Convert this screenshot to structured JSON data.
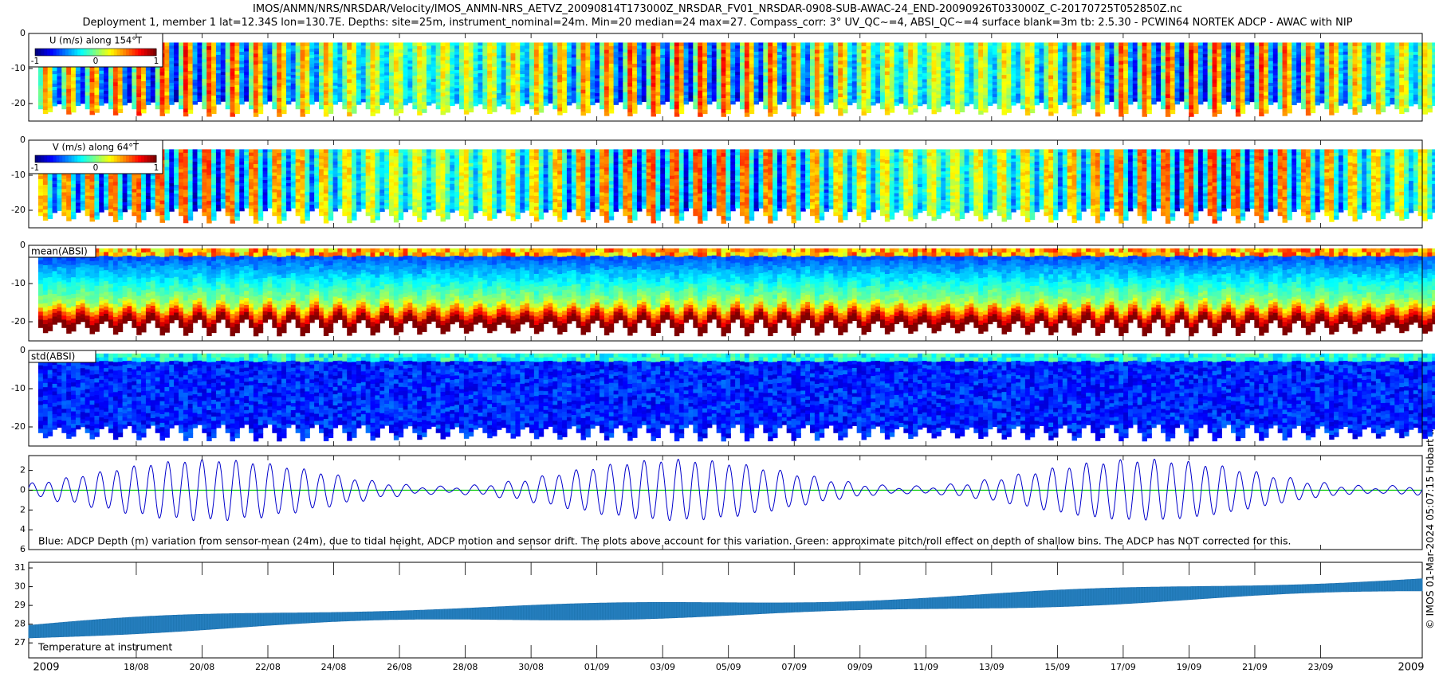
{
  "figure": {
    "title_line1": "IMOS/ANMN/NRS/NRSDAR/Velocity/IMOS_ANMN-NRS_AETVZ_20090814T173000Z_NRSDAR_FV01_NRSDAR-0908-SUB-AWAC-24_END-20090926T033000Z_C-20170725T052850Z.nc",
    "title_line2": "Deployment 1, member 1 lat=12.34S lon=130.7E. Depths: site=25m, instrument_nominal=24m. Min=20 median=24 max=27. Compass_corr: 3° UV_QC~=4, ABSI_QC~=4 surface blank=3m tb: 2.5.30 - PCWIN64 NORTEK ADCP - AWAC with NIP",
    "side_note": "© IMOS 01-Mar-2024 05:07:15 Hobart time"
  },
  "chart_data": [
    {
      "type": "heatmap",
      "panel": "U",
      "title": "U (m/s) along 154°T",
      "ylim": [
        -25,
        0
      ],
      "yticks": [
        0,
        -10,
        -20
      ],
      "ytick_labels": [
        "0",
        "-10",
        "-20"
      ],
      "colorbar": {
        "range": [
          -1,
          1
        ],
        "ticks": [
          "-1",
          "0",
          "1"
        ],
        "colormap": "jet"
      },
      "surface_blank_m": 3,
      "tidal_cycles": 60
    },
    {
      "type": "heatmap",
      "panel": "V",
      "title": "V (m/s) along 64°T",
      "ylim": [
        -25,
        0
      ],
      "yticks": [
        0,
        -10,
        -20
      ],
      "ytick_labels": [
        "0",
        "-10",
        "-20"
      ],
      "colorbar": {
        "range": [
          -1,
          1
        ],
        "ticks": [
          "-1",
          "0",
          "1"
        ],
        "colormap": "jet"
      },
      "surface_blank_m": 3,
      "tidal_cycles": 60
    },
    {
      "type": "heatmap",
      "panel": "meanABSI",
      "title": "mean(ABSI)",
      "ylim": [
        -25,
        0
      ],
      "yticks": [
        0,
        -10,
        -20
      ],
      "ytick_labels": [
        "0",
        "-10",
        "-20"
      ],
      "colormap": "jet",
      "tidal_cycles": 60
    },
    {
      "type": "heatmap",
      "panel": "stdABSI",
      "title": "std(ABSI)",
      "ylim": [
        -25,
        0
      ],
      "yticks": [
        0,
        -10,
        -20
      ],
      "ytick_labels": [
        "0",
        "-10",
        "-20"
      ],
      "colormap": "jet",
      "tidal_cycles": 60
    },
    {
      "type": "line",
      "panel": "depth",
      "ylim": [
        -6,
        3.5
      ],
      "yticks": [
        2,
        0,
        -2,
        -4,
        -6
      ],
      "ytick_labels": [
        "2",
        "0",
        "2",
        "4",
        "6"
      ],
      "series": [
        {
          "color": "#0000cc",
          "kind": "tidal_depth_variation",
          "amplitude_range": [
            0.3,
            3.0
          ],
          "period_days": 0.517
        },
        {
          "color": "#00cc00",
          "kind": "pitch_roll_effect",
          "value": 0
        }
      ],
      "annotation": "Blue: ADCP Depth (m) variation from sensor-mean (24m), due to tidal height, ADCP motion and sensor drift. The plots above account for this variation. Green: approximate pitch/roll effect on depth of shallow bins. The ADCP has NOT corrected for this."
    },
    {
      "type": "line",
      "panel": "temperature",
      "ylim": [
        26.2,
        31.3
      ],
      "yticks": [
        27,
        28,
        29,
        30,
        31
      ],
      "ytick_labels": [
        "27",
        "28",
        "29",
        "30",
        "31"
      ],
      "series": [
        {
          "color": "#1f77b4",
          "x_start": "2009-08-14",
          "x_end": "2009-09-26",
          "start_value": 27.6,
          "end_value": 30.1,
          "band_width": 0.9
        }
      ],
      "annotation": "Temperature at instrument"
    }
  ],
  "x_axis": {
    "tick_labels": [
      "2009",
      "18/08",
      "20/08",
      "22/08",
      "24/08",
      "26/08",
      "28/08",
      "30/08",
      "01/09",
      "03/09",
      "05/09",
      "07/09",
      "09/09",
      "11/09",
      "13/09",
      "15/09",
      "17/09",
      "19/09",
      "21/09",
      "23/09",
      "2009"
    ],
    "tick_days": [
      0,
      3.27,
      5.27,
      7.27,
      9.27,
      11.27,
      13.27,
      15.27,
      17.27,
      19.27,
      21.27,
      23.27,
      25.27,
      27.27,
      29.27,
      31.27,
      33.27,
      35.27,
      37.27,
      39.27,
      42.36
    ],
    "major_tick_days": [
      0,
      42.36
    ],
    "range_days": [
      0,
      42.36
    ]
  }
}
